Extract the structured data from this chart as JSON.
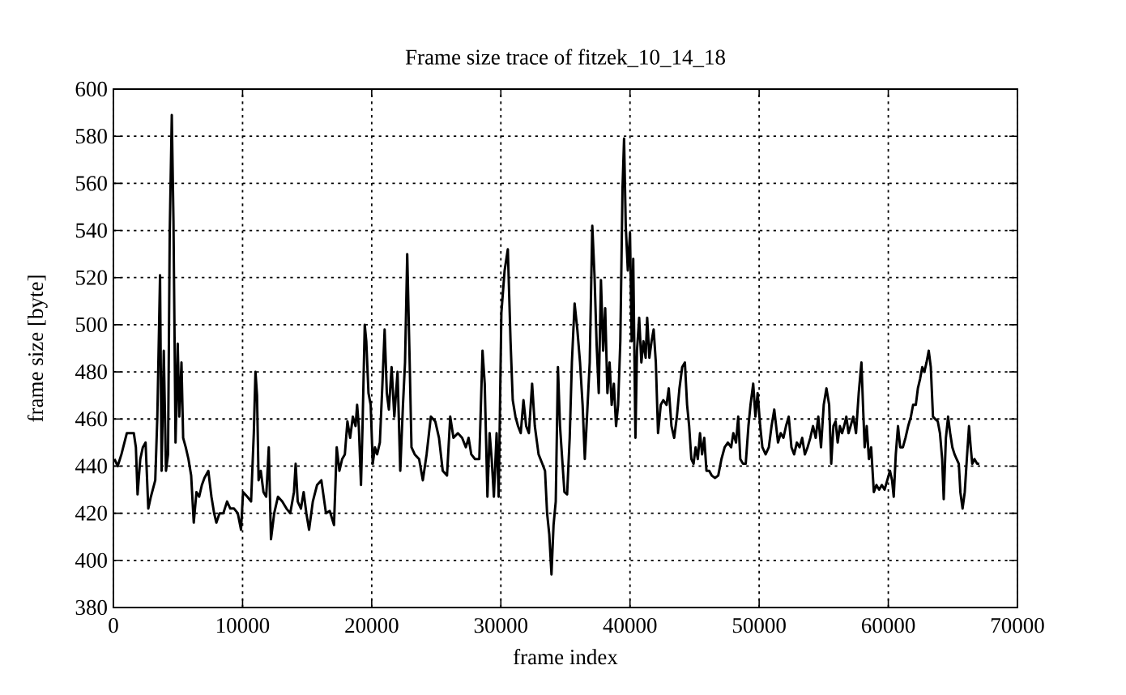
{
  "chart_data": {
    "type": "line",
    "title": "Frame size trace of fitzek_10_14_18",
    "xlabel": "frame index",
    "ylabel": "frame size [byte]",
    "x": [
      80,
      330,
      620,
      1040,
      1580,
      1740,
      1870,
      2080,
      2280,
      2490,
      2700,
      2900,
      3240,
      3400,
      3610,
      3730,
      3900,
      4070,
      4230,
      4360,
      4520,
      4650,
      4810,
      4980,
      5100,
      5270,
      5400,
      5600,
      5810,
      6020,
      6220,
      6430,
      6640,
      6850,
      7050,
      7350,
      7590,
      7800,
      7970,
      8220,
      8510,
      8800,
      9050,
      9340,
      9630,
      9880,
      10040,
      10370,
      10660,
      10870,
      11000,
      11120,
      11240,
      11410,
      11620,
      11830,
      12030,
      12200,
      12450,
      12740,
      13070,
      13400,
      13690,
      13980,
      14110,
      14270,
      14520,
      14730,
      14940,
      15150,
      15440,
      15770,
      16100,
      16460,
      16750,
      17080,
      17290,
      17500,
      17710,
      17920,
      18120,
      18330,
      18540,
      18750,
      18870,
      19000,
      19170,
      19290,
      19460,
      19580,
      19750,
      19920,
      20080,
      20250,
      20420,
      20630,
      20830,
      21000,
      21170,
      21330,
      21540,
      21750,
      22000,
      22210,
      22420,
      22580,
      22750,
      22920,
      23080,
      23330,
      23670,
      23960,
      24250,
      24580,
      24920,
      25210,
      25500,
      25830,
      26080,
      26330,
      26670,
      27000,
      27290,
      27500,
      27710,
      28000,
      28330,
      28580,
      28750,
      28960,
      29130,
      29290,
      29460,
      29670,
      29830,
      30040,
      30290,
      30540,
      30750,
      30920,
      31130,
      31330,
      31540,
      31750,
      31960,
      32170,
      32420,
      32630,
      32920,
      33210,
      33420,
      33580,
      33750,
      33920,
      34080,
      34250,
      34420,
      34580,
      34750,
      34920,
      35130,
      35330,
      35500,
      35710,
      35920,
      36130,
      36330,
      36500,
      36670,
      36880,
      37080,
      37250,
      37420,
      37580,
      37750,
      37920,
      38080,
      38250,
      38420,
      38580,
      38750,
      38920,
      39080,
      39250,
      39420,
      39540,
      39670,
      39830,
      40000,
      40130,
      40250,
      40420,
      40540,
      40710,
      40880,
      41040,
      41210,
      41330,
      41500,
      41670,
      41830,
      42000,
      42170,
      42380,
      42580,
      42830,
      43000,
      43210,
      43420,
      43630,
      43830,
      44040,
      44250,
      44420,
      44580,
      44750,
      44920,
      45080,
      45250,
      45420,
      45580,
      45750,
      45920,
      46130,
      46330,
      46580,
      46830,
      47080,
      47330,
      47580,
      47830,
      48000,
      48210,
      48380,
      48540,
      48750,
      48960,
      49170,
      49330,
      49540,
      49710,
      49880,
      50080,
      50250,
      50500,
      50750,
      50960,
      51170,
      51460,
      51670,
      51880,
      52080,
      52290,
      52500,
      52710,
      52920,
      53130,
      53330,
      53540,
      53750,
      53960,
      54170,
      54380,
      54580,
      54790,
      55000,
      55210,
      55420,
      55580,
      55750,
      55920,
      56080,
      56250,
      56420,
      56580,
      56750,
      56920,
      57080,
      57290,
      57500,
      57710,
      57920,
      58040,
      58170,
      58330,
      58500,
      58670,
      58880,
      59080,
      59290,
      59500,
      59710,
      59920,
      60130,
      60290,
      60420,
      60580,
      60750,
      60920,
      61130,
      61330,
      61540,
      61750,
      61920,
      62130,
      62290,
      62460,
      62630,
      62790,
      62960,
      63130,
      63290,
      63460,
      63630,
      63830,
      64000,
      64170,
      64290,
      64460,
      64630,
      64790,
      64960,
      65130,
      65290,
      65460,
      65580,
      65750,
      65920,
      66080,
      66250,
      66380,
      66500,
      66670,
      66880,
      67040
    ],
    "values": [
      443,
      440,
      445,
      454,
      454,
      448,
      428,
      443,
      448,
      450,
      422,
      427,
      434,
      461,
      521,
      438,
      489,
      438,
      445,
      539,
      589,
      544,
      450,
      492,
      461,
      484,
      452,
      448,
      443,
      436,
      416,
      429,
      427,
      432,
      435,
      438,
      427,
      420,
      416,
      420,
      420,
      425,
      422,
      422,
      420,
      413,
      429,
      427,
      425,
      454,
      480,
      470,
      434,
      438,
      429,
      427,
      448,
      409,
      420,
      427,
      425,
      422,
      420,
      429,
      441,
      425,
      422,
      429,
      420,
      413,
      425,
      432,
      434,
      420,
      421,
      415,
      448,
      438,
      443,
      445,
      459,
      452,
      461,
      457,
      466,
      457,
      432,
      457,
      500,
      493,
      471,
      466,
      441,
      448,
      445,
      450,
      475,
      498,
      471,
      464,
      482,
      461,
      480,
      438,
      466,
      484,
      530,
      489,
      448,
      445,
      443,
      434,
      445,
      461,
      459,
      452,
      438,
      436,
      461,
      452,
      454,
      452,
      448,
      452,
      445,
      443,
      443,
      489,
      475,
      427,
      454,
      443,
      427,
      454,
      427,
      505,
      523,
      532,
      493,
      468,
      461,
      457,
      454,
      468,
      457,
      454,
      475,
      457,
      445,
      441,
      438,
      420,
      411,
      394,
      415,
      425,
      482,
      457,
      443,
      429,
      428,
      452,
      484,
      509,
      498,
      484,
      466,
      443,
      461,
      484,
      542,
      521,
      491,
      471,
      519,
      489,
      507,
      471,
      484,
      466,
      475,
      457,
      466,
      493,
      558,
      579,
      542,
      523,
      539,
      493,
      528,
      452,
      489,
      503,
      484,
      493,
      486,
      503,
      486,
      493,
      498,
      484,
      454,
      466,
      468,
      466,
      473,
      457,
      452,
      461,
      473,
      482,
      484,
      466,
      457,
      443,
      441,
      448,
      443,
      454,
      445,
      452,
      438,
      438,
      436,
      435,
      436,
      443,
      448,
      450,
      448,
      454,
      450,
      461,
      443,
      441,
      441,
      457,
      466,
      475,
      461,
      471,
      457,
      448,
      445,
      448,
      457,
      464,
      450,
      454,
      452,
      457,
      461,
      448,
      445,
      450,
      448,
      452,
      445,
      448,
      452,
      457,
      452,
      461,
      448,
      466,
      473,
      466,
      441,
      457,
      459,
      450,
      457,
      454,
      457,
      461,
      454,
      457,
      461,
      454,
      471,
      484,
      466,
      448,
      457,
      443,
      448,
      429,
      432,
      430,
      432,
      430,
      434,
      438,
      434,
      427,
      445,
      457,
      448,
      448,
      452,
      457,
      461,
      466,
      466,
      473,
      477,
      482,
      480,
      484,
      489,
      482,
      461,
      460,
      459,
      454,
      443,
      426,
      452,
      461,
      454,
      448,
      445,
      443,
      441,
      429,
      422,
      429,
      443,
      457,
      448,
      441,
      443,
      441,
      441
    ],
    "color": "#000000",
    "xlim": [
      0,
      70000
    ],
    "ylim": [
      380,
      600
    ],
    "xticks": [
      0,
      10000,
      20000,
      30000,
      40000,
      50000,
      60000,
      70000
    ],
    "yticks": [
      380,
      400,
      420,
      440,
      460,
      480,
      500,
      520,
      540,
      560,
      580,
      600
    ],
    "grid": true
  }
}
